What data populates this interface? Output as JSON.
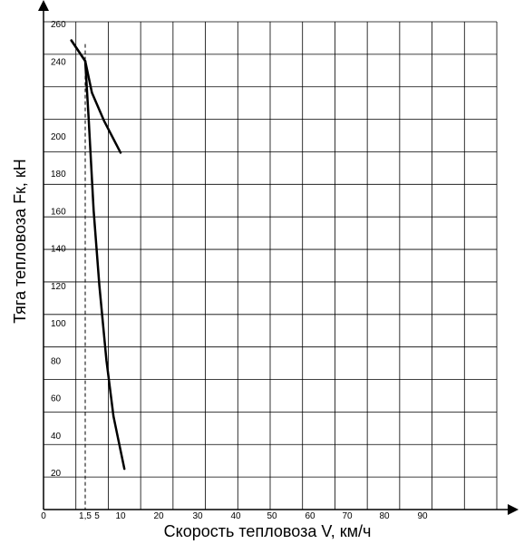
{
  "chart_data": {
    "type": "line",
    "title": "",
    "xlabel": "Скорость тепловоза V, км/ч",
    "ylabel": "Тяга тепловоза Fк, кН",
    "x_tick_labels": [
      "0",
      "1,5",
      "5",
      "10",
      "20",
      "30",
      "40",
      "50",
      "60",
      "70",
      "80",
      "90"
    ],
    "y_tick_labels": [
      "20",
      "40",
      "60",
      "80",
      "100",
      "120",
      "140",
      "160",
      "180",
      "200",
      "240",
      "260"
    ],
    "grid": true,
    "series": [
      {
        "values_note": "",
        "x": [
          1.0,
          1.5,
          3.5,
          6.5,
          10.0
        ],
        "y": [
          251,
          240,
          223,
          208,
          191
        ]
      },
      {
        "x": [
          1.0,
          1.5,
          2.5,
          4.0,
          5.5,
          7.0,
          8.5,
          11.0
        ],
        "y": [
          251,
          240,
          210,
          160,
          120,
          80,
          50,
          22
        ]
      }
    ],
    "reference_lines": [
      {
        "orientation": "vertical",
        "x": 1.5,
        "style": "dashed"
      }
    ]
  }
}
